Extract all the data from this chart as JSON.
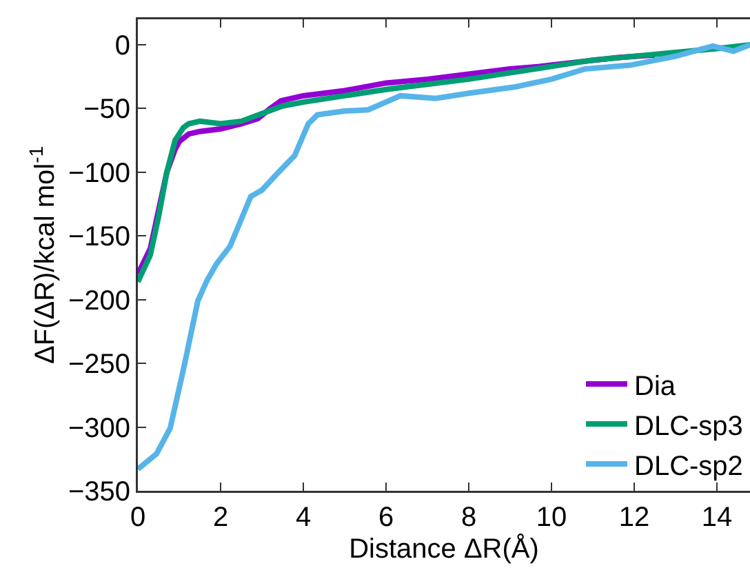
{
  "chart_data": {
    "type": "line",
    "xlabel": "Distance ΔR(Å)",
    "ylabel": "ΔF(ΔR)/kcal mol$^{-1}$",
    "xlim": [
      0,
      14.8
    ],
    "xticks": [
      0,
      2,
      4,
      6,
      8,
      10,
      12,
      14
    ],
    "ylim": [
      -350,
      20
    ],
    "yticks": [
      0,
      -50,
      -100,
      -150,
      -200,
      -250,
      -300,
      -350
    ],
    "grid": false,
    "legend": "bottom right",
    "marker": "none",
    "line_style": "solid",
    "series": [
      {
        "name": "Dia",
        "color": "#9400d3",
        "x": [
          0,
          0.3,
          0.5,
          0.7,
          0.9,
          1.0,
          1.23,
          1.5,
          2,
          2.5,
          2.9,
          3.2,
          3.46,
          4,
          5,
          6,
          7,
          8,
          9,
          9.7,
          10.5,
          11.6,
          12.5
        ],
        "values": [
          -180,
          -160,
          -130,
          -100,
          -82,
          -76,
          -70,
          -68,
          -66,
          -62,
          -58,
          -50,
          -44,
          -40,
          -36,
          -30,
          -27,
          -23,
          -19,
          -17,
          -14,
          -10,
          -8
        ]
      },
      {
        "name": "DLC-sp3",
        "color": "#009e73",
        "x": [
          0,
          0.3,
          0.5,
          0.7,
          0.9,
          1.1,
          1.23,
          1.5,
          2,
          2.5,
          3,
          3.5,
          4,
          5,
          6,
          7,
          8,
          9,
          10,
          11,
          12,
          13,
          14,
          14.8
        ],
        "values": [
          -186,
          -165,
          -135,
          -100,
          -75,
          -65,
          -62,
          -60,
          -62,
          -60,
          -54,
          -48,
          -45,
          -40,
          -35,
          -31,
          -27,
          -22,
          -17,
          -12,
          -9,
          -6,
          -3,
          0
        ]
      },
      {
        "name": "DLC-sp2",
        "color": "#56b4e9",
        "x": [
          0,
          0.45,
          0.78,
          1.1,
          1.45,
          1.67,
          1.9,
          2.23,
          2.73,
          3.0,
          3.4,
          3.79,
          4.12,
          4.34,
          5,
          5.57,
          6.35,
          7.2,
          8,
          9.13,
          10,
          10.8,
          11.9,
          13,
          13.9,
          14.4,
          14.8
        ],
        "values": [
          -333,
          -321,
          -301,
          -255,
          -201,
          -185,
          -172,
          -158,
          -119,
          -114,
          -100,
          -87,
          -62,
          -55,
          -52,
          -51,
          -40,
          -42,
          -38,
          -33,
          -27,
          -19,
          -16,
          -9,
          -1,
          -5,
          0
        ]
      }
    ]
  }
}
